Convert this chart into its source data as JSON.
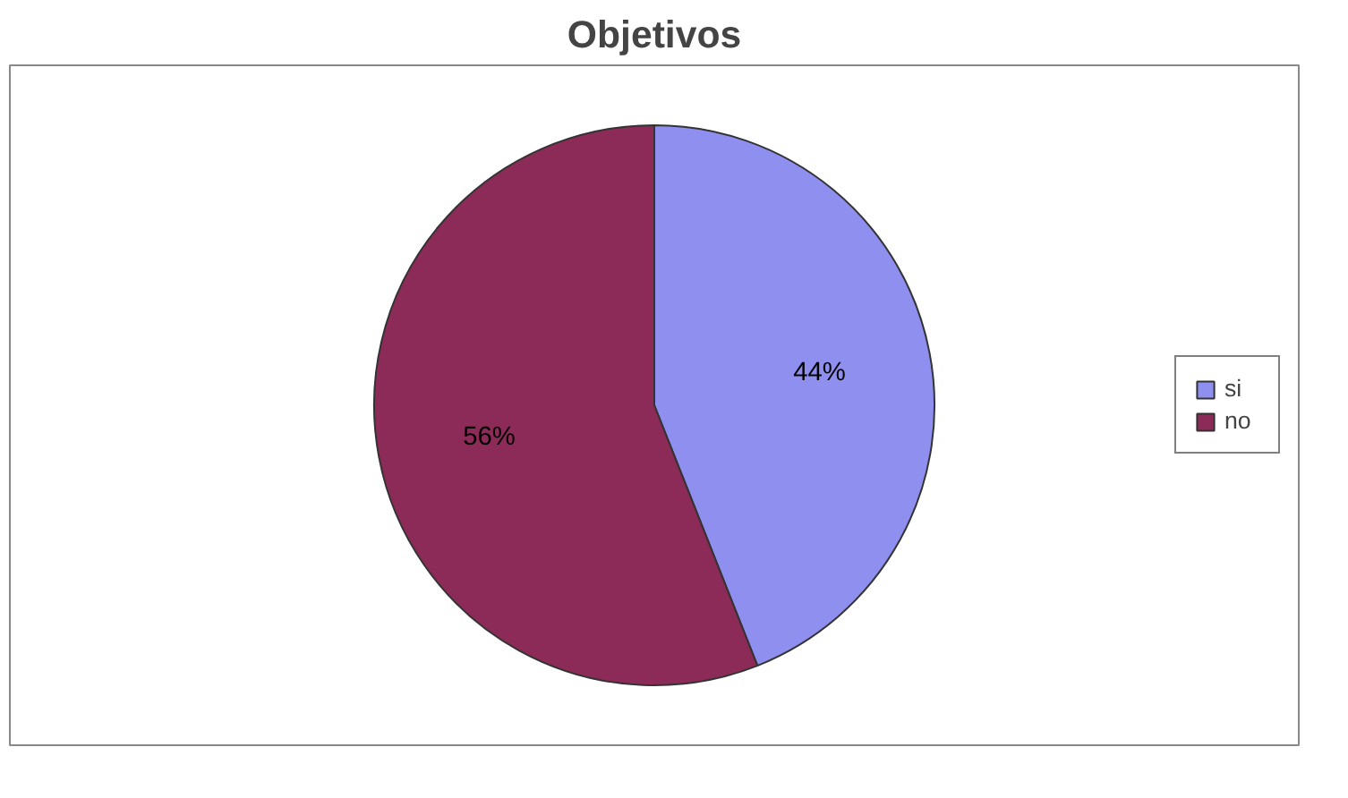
{
  "chart_data": {
    "type": "pie",
    "title": "Objetivos",
    "categories": [
      "si",
      "no"
    ],
    "values": [
      44,
      56
    ],
    "colors": [
      "#8f8fef",
      "#8c2b57"
    ],
    "value_labels": [
      "44%",
      "56%"
    ],
    "legend": "right"
  }
}
